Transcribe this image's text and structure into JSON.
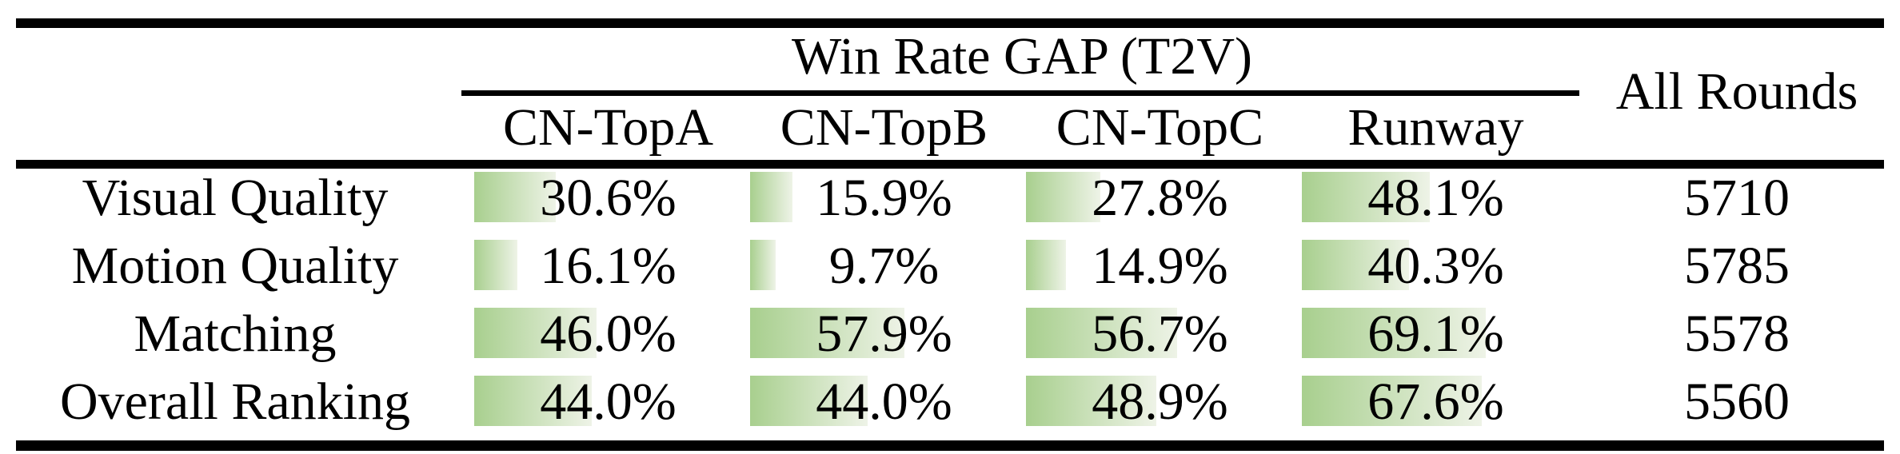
{
  "table": {
    "title": "Win Rate GAP (T2V)",
    "all_rounds_header": "All Rounds",
    "columns": [
      "CN-TopA",
      "CN-TopB",
      "CN-TopC",
      "Runway"
    ],
    "rows": [
      {
        "label": "Visual Quality",
        "cells": [
          {
            "display": "30.6%",
            "value": 30.6
          },
          {
            "display": "15.9%",
            "value": 15.9
          },
          {
            "display": "27.8%",
            "value": 27.8
          },
          {
            "display": "48.1%",
            "value": 48.1
          }
        ],
        "all_rounds": "5710"
      },
      {
        "label": "Motion Quality",
        "cells": [
          {
            "display": "16.1%",
            "value": 16.1
          },
          {
            "display": "9.7%",
            "value": 9.7
          },
          {
            "display": "14.9%",
            "value": 14.9
          },
          {
            "display": "40.3%",
            "value": 40.3
          }
        ],
        "all_rounds": "5785"
      },
      {
        "label": "Matching",
        "cells": [
          {
            "display": "46.0%",
            "value": 46.0
          },
          {
            "display": "57.9%",
            "value": 57.9
          },
          {
            "display": "56.7%",
            "value": 56.7
          },
          {
            "display": "69.1%",
            "value": 69.1
          }
        ],
        "all_rounds": "5578"
      },
      {
        "label": "Overall Ranking",
        "cells": [
          {
            "display": "44.0%",
            "value": 44.0
          },
          {
            "display": "44.0%",
            "value": 44.0
          },
          {
            "display": "48.9%",
            "value": 48.9
          },
          {
            "display": "67.6%",
            "value": 67.6
          }
        ],
        "all_rounds": "5560"
      }
    ],
    "colors": {
      "bar_gradient_start": "#a8cf8e",
      "bar_gradient_end": "#eef3e7",
      "rule": "#000000",
      "text": "#000000",
      "background": "#ffffff"
    }
  },
  "chart_data": {
    "type": "table",
    "title": "Win Rate GAP (T2V)",
    "columns": [
      "",
      "CN-TopA",
      "CN-TopB",
      "CN-TopC",
      "Runway",
      "All Rounds"
    ],
    "rows": [
      [
        "Visual Quality",
        "30.6%",
        "15.9%",
        "27.8%",
        "48.1%",
        "5710"
      ],
      [
        "Motion Quality",
        "16.1%",
        "9.7%",
        "14.9%",
        "40.3%",
        "5785"
      ],
      [
        "Matching",
        "46.0%",
        "57.9%",
        "56.7%",
        "69.1%",
        "5578"
      ],
      [
        "Overall Ranking",
        "44.0%",
        "44.0%",
        "48.9%",
        "67.6%",
        "5560"
      ]
    ],
    "bar_values_percent": {
      "CN-TopA": [
        30.6,
        16.1,
        46.0,
        44.0
      ],
      "CN-TopB": [
        15.9,
        9.7,
        57.9,
        44.0
      ],
      "CN-TopC": [
        27.8,
        14.9,
        56.7,
        48.9
      ],
      "Runway": [
        48.1,
        40.3,
        69.1,
        67.6
      ]
    },
    "bar_scale_note": "bar width proportional to percent, 100% = full column width"
  }
}
